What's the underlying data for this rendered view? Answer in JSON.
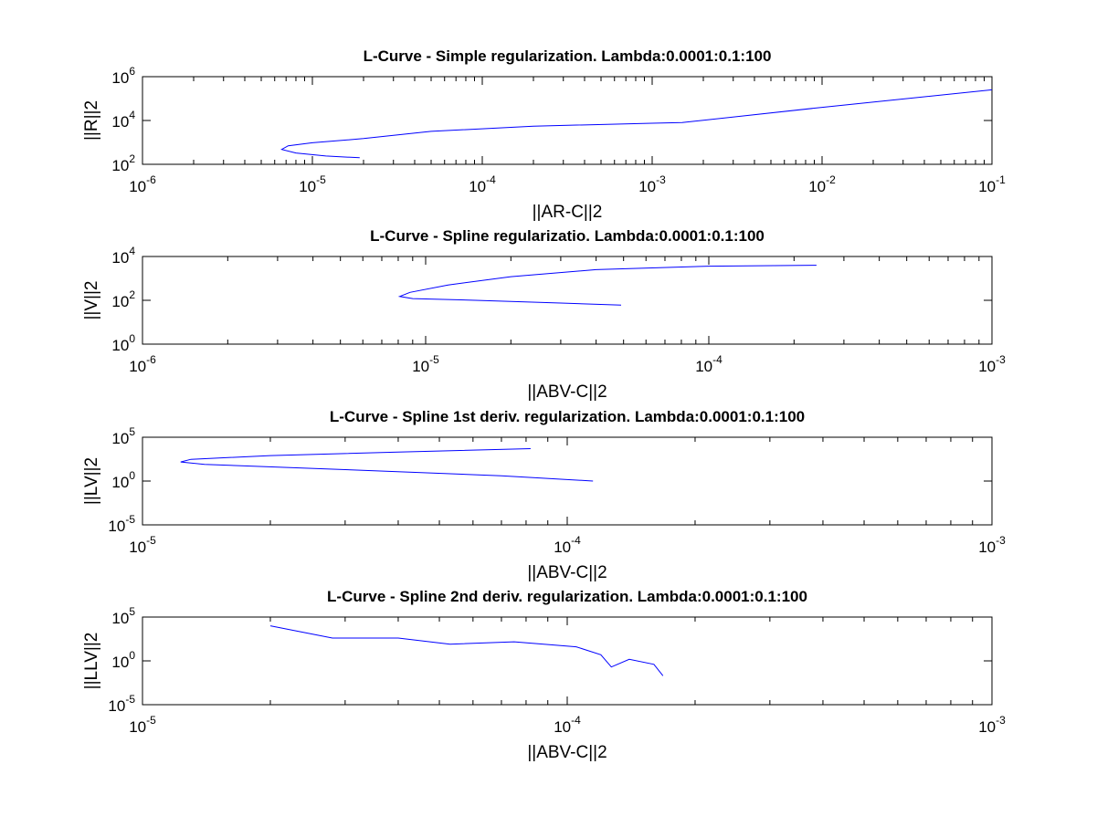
{
  "chart_data": [
    {
      "type": "line",
      "title": "L-Curve - Simple regularization. Lambda:0.0001:0.1:100",
      "xlabel": "||AR-C||2",
      "ylabel": "||R||2",
      "xscale": "log",
      "yscale": "log",
      "xlim": [
        1e-06,
        0.1
      ],
      "ylim": [
        100,
        1000000
      ],
      "xticks": [
        {
          "base": "10",
          "exp": "-6",
          "value": 1e-06
        },
        {
          "base": "10",
          "exp": "-5",
          "value": 1e-05
        },
        {
          "base": "10",
          "exp": "-4",
          "value": 0.0001
        },
        {
          "base": "10",
          "exp": "-3",
          "value": 0.001
        },
        {
          "base": "10",
          "exp": "-2",
          "value": 0.01
        },
        {
          "base": "10",
          "exp": "-1",
          "value": 0.1
        }
      ],
      "yticks": [
        {
          "base": "10",
          "exp": "2",
          "value": 100
        },
        {
          "base": "10",
          "exp": "4",
          "value": 10000
        },
        {
          "base": "10",
          "exp": "6",
          "value": 1000000
        }
      ],
      "color": "#0000ff",
      "x": [
        1.9e-05,
        1.2e-05,
        8e-06,
        6.6e-06,
        7.2e-06,
        1e-05,
        2e-05,
        5e-05,
        0.0002,
        0.001,
        0.0015,
        0.01,
        0.1
      ],
      "y": [
        200,
        240,
        330,
        480,
        700,
        960,
        1500,
        3200,
        5500,
        7500,
        8000,
        40000,
        250000
      ]
    },
    {
      "type": "line",
      "title": "L-Curve - Spline regularizatio. Lambda:0.0001:0.1:100",
      "xlabel": "||ABV-C||2",
      "ylabel": "||V||2",
      "xscale": "log",
      "yscale": "log",
      "xlim": [
        1e-06,
        0.001
      ],
      "ylim": [
        1,
        10000
      ],
      "xticks": [
        {
          "base": "10",
          "exp": "-6",
          "value": 1e-06
        },
        {
          "base": "10",
          "exp": "-5",
          "value": 1e-05
        },
        {
          "base": "10",
          "exp": "-4",
          "value": 0.0001
        },
        {
          "base": "10",
          "exp": "-3",
          "value": 0.001
        }
      ],
      "yticks": [
        {
          "base": "10",
          "exp": "0",
          "value": 1
        },
        {
          "base": "10",
          "exp": "2",
          "value": 100
        },
        {
          "base": "10",
          "exp": "4",
          "value": 10000
        }
      ],
      "color": "#0000ff",
      "x": [
        4.9e-05,
        3e-05,
        1.5e-05,
        9e-06,
        8.1e-06,
        8.8e-06,
        1.2e-05,
        2e-05,
        4e-05,
        0.0001,
        0.00024
      ],
      "y": [
        60,
        75,
        100,
        120,
        150,
        230,
        500,
        1200,
        2500,
        3600,
        4000
      ]
    },
    {
      "type": "line",
      "title": "L-Curve - Spline 1st deriv. regularization. Lambda:0.0001:0.1:100",
      "xlabel": "||ABV-C||2",
      "ylabel": "||LV||2",
      "xscale": "log",
      "yscale": "log",
      "xlim": [
        1e-05,
        0.001
      ],
      "ylim": [
        1e-05,
        100000
      ],
      "xticks": [
        {
          "base": "10",
          "exp": "-5",
          "value": 1e-05
        },
        {
          "base": "10",
          "exp": "-4",
          "value": 0.0001
        },
        {
          "base": "10",
          "exp": "-3",
          "value": 0.001
        }
      ],
      "yticks": [
        {
          "base": "10",
          "exp": "-5",
          "value": 1e-05
        },
        {
          "base": "10",
          "exp": "0",
          "value": 1
        },
        {
          "base": "10",
          "exp": "5",
          "value": 100000
        }
      ],
      "color": "#0000ff",
      "x": [
        0.000115,
        7e-05,
        3e-05,
        1.4e-05,
        1.23e-05,
        1.3e-05,
        2e-05,
        4e-05,
        8.2e-05
      ],
      "y": [
        1,
        4,
        20,
        80,
        150,
        300,
        800,
        2000,
        5000
      ]
    },
    {
      "type": "line",
      "title": "L-Curve - Spline 2nd deriv. regularization. Lambda:0.0001:0.1:100",
      "xlabel": "||ABV-C||2",
      "ylabel": "||LLV||2",
      "xscale": "log",
      "yscale": "log",
      "xlim": [
        1e-05,
        0.001
      ],
      "ylim": [
        1e-05,
        100000
      ],
      "xticks": [
        {
          "base": "10",
          "exp": "-5",
          "value": 1e-05
        },
        {
          "base": "10",
          "exp": "-4",
          "value": 0.0001
        },
        {
          "base": "10",
          "exp": "-3",
          "value": 0.001
        }
      ],
      "yticks": [
        {
          "base": "10",
          "exp": "-5",
          "value": 1e-05
        },
        {
          "base": "10",
          "exp": "0",
          "value": 1
        },
        {
          "base": "10",
          "exp": "5",
          "value": 100000
        }
      ],
      "color": "#0000ff",
      "x": [
        2e-05,
        2.8e-05,
        4e-05,
        5.3e-05,
        7.5e-05,
        0.000105,
        0.00012,
        0.000127,
        0.00014,
        0.00016,
        0.000168
      ],
      "y": [
        10000,
        400,
        400,
        80,
        150,
        40,
        5,
        0.2,
        1.5,
        0.4,
        0.02
      ]
    }
  ]
}
